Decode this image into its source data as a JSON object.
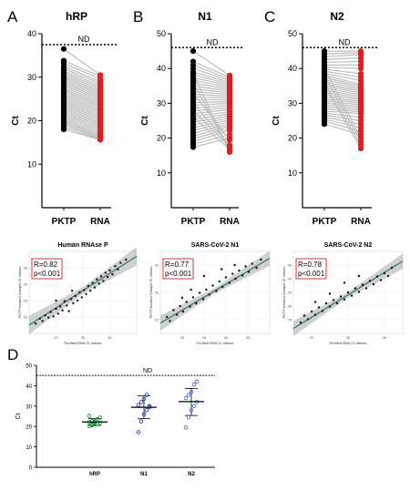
{
  "chart_data": [
    {
      "panel": "A",
      "type": "line",
      "title": "hRP",
      "ylabel": "Ct",
      "ylim": [
        0,
        40
      ],
      "yticks": [
        10,
        20,
        30,
        40
      ],
      "categories": [
        "PKTP",
        "RNA"
      ],
      "nd_label": "ND",
      "nd_line": 37.5,
      "colors": [
        "#000000",
        "#e41a1c"
      ],
      "pairs": [
        [
          36.5,
          30.5
        ],
        [
          33.8,
          30.2
        ],
        [
          33.2,
          29.6
        ],
        [
          32.5,
          29.0
        ],
        [
          32.0,
          28.5
        ],
        [
          31.5,
          28.0
        ],
        [
          31.0,
          27.6
        ],
        [
          30.6,
          27.2
        ],
        [
          30.2,
          26.8
        ],
        [
          29.8,
          26.4
        ],
        [
          29.4,
          26.0
        ],
        [
          29.0,
          25.6
        ],
        [
          28.6,
          25.2
        ],
        [
          28.2,
          24.8
        ],
        [
          27.8,
          24.4
        ],
        [
          27.4,
          24.0
        ],
        [
          27.0,
          23.6
        ],
        [
          26.6,
          23.2
        ],
        [
          26.2,
          22.8
        ],
        [
          25.8,
          22.4
        ],
        [
          25.4,
          22.0
        ],
        [
          25.0,
          21.6
        ],
        [
          24.6,
          21.2
        ],
        [
          24.2,
          20.8
        ],
        [
          23.8,
          20.4
        ],
        [
          23.4,
          20.0
        ],
        [
          23.0,
          19.6
        ],
        [
          22.6,
          19.2
        ],
        [
          22.2,
          18.8
        ],
        [
          21.8,
          18.4
        ],
        [
          21.4,
          18.0
        ],
        [
          21.0,
          17.6
        ],
        [
          20.6,
          17.2
        ],
        [
          20.2,
          16.8
        ],
        [
          19.8,
          16.5
        ],
        [
          19.4,
          16.2
        ],
        [
          19.0,
          16.0
        ],
        [
          18.5,
          15.8
        ],
        [
          18.0,
          15.6
        ]
      ]
    },
    {
      "panel": "B",
      "type": "line",
      "title": "N1",
      "ylabel": "Ct",
      "ylim": [
        0,
        50
      ],
      "yticks": [
        10,
        20,
        30,
        40,
        50
      ],
      "categories": [
        "PKTP",
        "RNA"
      ],
      "nd_label": "ND",
      "nd_line": 46,
      "colors": [
        "#000000",
        "#e41a1c"
      ],
      "pairs": [
        [
          45.0,
          38.0
        ],
        [
          42.0,
          37.5
        ],
        [
          41.0,
          37.0
        ],
        [
          40.0,
          36.5
        ],
        [
          39.0,
          36.0
        ],
        [
          38.2,
          35.5
        ],
        [
          37.4,
          35.0
        ],
        [
          36.6,
          34.5
        ],
        [
          35.8,
          34.0
        ],
        [
          35.0,
          33.5
        ],
        [
          34.2,
          33.0
        ],
        [
          33.4,
          32.5
        ],
        [
          32.6,
          32.0
        ],
        [
          31.8,
          31.5
        ],
        [
          31.0,
          31.0
        ],
        [
          30.2,
          30.5
        ],
        [
          29.4,
          30.0
        ],
        [
          28.6,
          29.4
        ],
        [
          27.8,
          28.8
        ],
        [
          27.0,
          28.2
        ],
        [
          26.2,
          27.6
        ],
        [
          25.4,
          27.0
        ],
        [
          24.6,
          26.4
        ],
        [
          23.8,
          25.8
        ],
        [
          23.0,
          25.2
        ],
        [
          22.2,
          24.6
        ],
        [
          21.4,
          24.0
        ],
        [
          20.6,
          23.4
        ],
        [
          19.8,
          22.8
        ],
        [
          19.0,
          22.2
        ],
        [
          18.2,
          21.0
        ],
        [
          17.4,
          20.0
        ],
        [
          36.0,
          16.5
        ],
        [
          38.5,
          16.0
        ],
        [
          33.0,
          19.5
        ],
        [
          30.0,
          18.0
        ],
        [
          28.0,
          17.5
        ],
        [
          26.0,
          16.8
        ]
      ]
    },
    {
      "panel": "C",
      "type": "line",
      "title": "N2",
      "ylabel": "Ct",
      "ylim": [
        0,
        50
      ],
      "yticks": [
        10,
        20,
        30,
        40,
        50
      ],
      "categories": [
        "PKTP",
        "RNA"
      ],
      "nd_label": "ND",
      "nd_line": 46,
      "colors": [
        "#000000",
        "#e41a1c"
      ],
      "pairs": [
        [
          45.0,
          45.0
        ],
        [
          44.2,
          44.5
        ],
        [
          43.4,
          44.0
        ],
        [
          42.6,
          43.0
        ],
        [
          41.8,
          42.0
        ],
        [
          41.0,
          41.0
        ],
        [
          40.4,
          40.0
        ],
        [
          39.8,
          38.5
        ],
        [
          39.2,
          37.5
        ],
        [
          38.6,
          36.5
        ],
        [
          38.0,
          35.5
        ],
        [
          37.4,
          35.0
        ],
        [
          36.8,
          34.5
        ],
        [
          36.2,
          34.0
        ],
        [
          35.6,
          33.5
        ],
        [
          35.0,
          33.0
        ],
        [
          34.4,
          32.5
        ],
        [
          33.8,
          32.0
        ],
        [
          33.2,
          31.5
        ],
        [
          32.6,
          31.0
        ],
        [
          32.0,
          30.5
        ],
        [
          31.4,
          30.0
        ],
        [
          30.8,
          29.5
        ],
        [
          30.2,
          29.0
        ],
        [
          29.6,
          28.5
        ],
        [
          29.0,
          28.0
        ],
        [
          28.4,
          27.5
        ],
        [
          27.8,
          27.0
        ],
        [
          27.2,
          26.0
        ],
        [
          26.6,
          25.0
        ],
        [
          26.0,
          24.0
        ],
        [
          25.4,
          23.0
        ],
        [
          24.8,
          22.0
        ],
        [
          24.0,
          21.0
        ],
        [
          40.0,
          20.0
        ],
        [
          38.0,
          19.0
        ],
        [
          36.0,
          18.0
        ],
        [
          35.0,
          17.0
        ]
      ]
    },
    {
      "panel": "scatter-1",
      "type": "scatter",
      "title": "Human RNAse P",
      "xlabel": "Purified RNA Ct Values",
      "ylabel": "PKTP-treated Sample Ct Values",
      "xlim": [
        15,
        35
      ],
      "ylim": [
        15,
        40
      ],
      "xticks": [
        20,
        25,
        30
      ],
      "yticks": [
        20,
        25,
        30,
        35
      ],
      "annotation": [
        "R=0.82",
        "p<0.001"
      ],
      "fit": {
        "slope": 1.05,
        "intercept": 1.8
      },
      "points": [
        [
          16.2,
          18.0
        ],
        [
          17.0,
          19.5
        ],
        [
          17.5,
          18.8
        ],
        [
          18.0,
          20.5
        ],
        [
          18.6,
          19.8
        ],
        [
          19.0,
          21.5
        ],
        [
          19.5,
          20.2
        ],
        [
          20.0,
          22.5
        ],
        [
          20.4,
          21.0
        ],
        [
          20.8,
          23.2
        ],
        [
          21.2,
          22.0
        ],
        [
          21.6,
          24.8
        ],
        [
          22.0,
          23.5
        ],
        [
          22.4,
          21.8
        ],
        [
          22.8,
          25.5
        ],
        [
          23.2,
          24.2
        ],
        [
          23.6,
          26.4
        ],
        [
          24.0,
          25.0
        ],
        [
          24.4,
          27.5
        ],
        [
          24.8,
          26.0
        ],
        [
          25.2,
          28.2
        ],
        [
          25.6,
          27.0
        ],
        [
          26.0,
          29.5
        ],
        [
          26.4,
          28.0
        ],
        [
          26.8,
          30.4
        ],
        [
          27.2,
          29.0
        ],
        [
          27.6,
          31.5
        ],
        [
          28.0,
          30.2
        ],
        [
          28.4,
          32.4
        ],
        [
          28.8,
          31.0
        ],
        [
          29.2,
          33.5
        ],
        [
          29.6,
          32.2
        ],
        [
          30.0,
          34.2
        ],
        [
          30.5,
          33.0
        ],
        [
          31.0,
          35.5
        ],
        [
          31.5,
          34.5
        ],
        [
          32.0,
          36.5
        ],
        [
          33.0,
          37.5
        ],
        [
          23.0,
          28.0
        ],
        [
          20.0,
          25.0
        ]
      ]
    },
    {
      "panel": "scatter-2",
      "type": "scatter",
      "title": "SARS-CoV-2 N1",
      "xlabel": "Purified RNA Ct Values",
      "ylabel": "PKTP-treated Sample Ct Values",
      "xlim": [
        15,
        40
      ],
      "ylim": [
        15,
        45
      ],
      "xticks": [
        20,
        25,
        30,
        35
      ],
      "yticks": [
        20,
        30,
        40
      ],
      "annotation": [
        "R=0.77",
        "p<0.001"
      ],
      "fit": {
        "slope": 0.95,
        "intercept": 4.5
      },
      "points": [
        [
          16.5,
          21.0
        ],
        [
          17.2,
          19.5
        ],
        [
          18.0,
          23.5
        ],
        [
          18.8,
          21.8
        ],
        [
          19.5,
          25.0
        ],
        [
          20.2,
          23.0
        ],
        [
          21.0,
          26.5
        ],
        [
          21.8,
          24.8
        ],
        [
          22.5,
          28.2
        ],
        [
          23.2,
          26.0
        ],
        [
          24.0,
          29.8
        ],
        [
          24.8,
          27.5
        ],
        [
          25.5,
          31.0
        ],
        [
          26.2,
          29.2
        ],
        [
          27.0,
          32.5
        ],
        [
          27.8,
          30.5
        ],
        [
          28.5,
          34.0
        ],
        [
          29.2,
          32.0
        ],
        [
          30.0,
          35.5
        ],
        [
          30.8,
          33.5
        ],
        [
          31.5,
          36.8
        ],
        [
          32.2,
          35.0
        ],
        [
          33.0,
          38.0
        ],
        [
          33.8,
          36.2
        ],
        [
          34.5,
          39.5
        ],
        [
          35.2,
          37.5
        ],
        [
          36.0,
          40.5
        ],
        [
          37.0,
          39.0
        ],
        [
          38.0,
          42.0
        ],
        [
          25.0,
          36.0
        ],
        [
          22.0,
          31.0
        ],
        [
          29.0,
          38.5
        ],
        [
          32.0,
          40.0
        ],
        [
          20.0,
          28.0
        ]
      ]
    },
    {
      "panel": "scatter-3",
      "type": "scatter",
      "title": "SARS-CoV-2 N2",
      "xlabel": "Purified RNA Ct Values",
      "ylabel": "PKTP-treated Sample Ct Values",
      "xlim": [
        15,
        45
      ],
      "ylim": [
        20,
        50
      ],
      "xticks": [
        20,
        30,
        40
      ],
      "yticks": [
        25,
        30,
        35,
        40,
        45
      ],
      "annotation": [
        "R=0.78",
        "p<0.001"
      ],
      "fit": {
        "slope": 0.82,
        "intercept": 9.5
      },
      "points": [
        [
          17.0,
          24.0
        ],
        [
          18.0,
          26.5
        ],
        [
          19.0,
          25.2
        ],
        [
          20.0,
          28.0
        ],
        [
          21.0,
          26.8
        ],
        [
          22.0,
          29.5
        ],
        [
          23.0,
          28.2
        ],
        [
          24.0,
          31.0
        ],
        [
          25.0,
          29.8
        ],
        [
          26.0,
          32.2
        ],
        [
          27.0,
          31.0
        ],
        [
          28.0,
          33.5
        ],
        [
          29.0,
          32.4
        ],
        [
          30.0,
          35.0
        ],
        [
          31.0,
          33.8
        ],
        [
          32.0,
          36.5
        ],
        [
          33.0,
          35.2
        ],
        [
          34.0,
          37.8
        ],
        [
          35.0,
          36.5
        ],
        [
          36.0,
          39.2
        ],
        [
          37.0,
          38.0
        ],
        [
          38.0,
          40.8
        ],
        [
          39.0,
          39.5
        ],
        [
          40.0,
          42.0
        ],
        [
          41.0,
          41.0
        ],
        [
          42.0,
          44.0
        ],
        [
          29.0,
          38.5
        ],
        [
          25.0,
          34.5
        ],
        [
          33.0,
          41.0
        ],
        [
          21.0,
          31.5
        ]
      ]
    },
    {
      "panel": "D",
      "type": "scatter",
      "ylabel": "Ct",
      "ylim": [
        0,
        50
      ],
      "yticks": [
        0,
        10,
        20,
        30,
        40,
        50
      ],
      "categories": [
        "hRP",
        "N1",
        "N2"
      ],
      "nd_label": "ND",
      "nd_line": 45,
      "colors": [
        "#1a9641",
        "#2b3aa8",
        "#4a6fd0"
      ],
      "groups": [
        {
          "name": "hRP",
          "values": [
            20.2,
            20.6,
            21.0,
            21.4,
            21.8,
            22.2,
            22.6,
            23.0,
            23.6,
            24.4,
            25.2,
            20.8,
            21.6
          ],
          "mean": 22.2,
          "sd": [
            20.5,
            23.9
          ]
        },
        {
          "name": "N1",
          "values": [
            17.2,
            22.5,
            26.0,
            28.0,
            29.5,
            30.5,
            32.0,
            33.5,
            35.5,
            30.0
          ],
          "mean": 29.4,
          "sd": [
            23.8,
            35.0
          ]
        },
        {
          "name": "N2",
          "values": [
            19.5,
            24.5,
            28.0,
            30.0,
            32.0,
            34.0,
            35.5,
            37.0,
            40.5,
            42.0
          ],
          "mean": 32.2,
          "sd": [
            25.4,
            38.6
          ]
        }
      ]
    }
  ]
}
